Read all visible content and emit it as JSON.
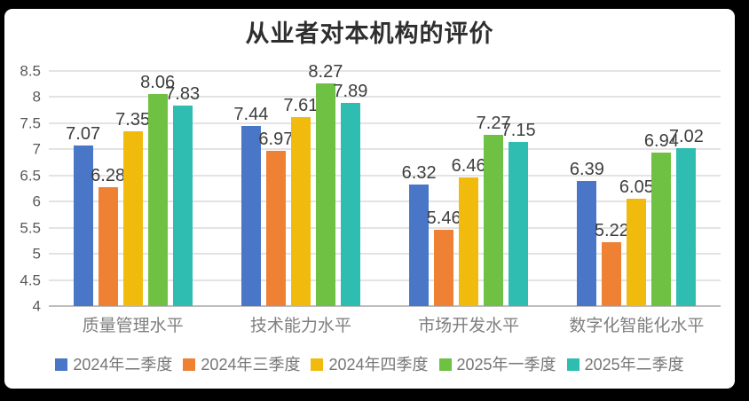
{
  "frame": {
    "background_color": "#000000",
    "card_background_color": "#ffffff"
  },
  "chart_data": {
    "type": "bar",
    "title": "从业者对本机构的评价",
    "categories": [
      "质量管理水平",
      "技术能力水平",
      "市场开发水平",
      "数字化智能化水平"
    ],
    "series": [
      {
        "name": "2024年二季度",
        "color": "#4A76C8",
        "values": [
          7.07,
          7.44,
          6.32,
          6.39
        ]
      },
      {
        "name": "2024年三季度",
        "color": "#EE8133",
        "values": [
          6.28,
          6.97,
          5.46,
          5.22
        ]
      },
      {
        "name": "2024年四季度",
        "color": "#F1BB0E",
        "values": [
          7.35,
          7.61,
          6.46,
          6.05
        ]
      },
      {
        "name": "2025年一季度",
        "color": "#6FC143",
        "values": [
          8.06,
          8.27,
          7.27,
          6.94
        ]
      },
      {
        "name": "2025年二季度",
        "color": "#2FBDB2",
        "values": [
          7.83,
          7.89,
          7.15,
          7.02
        ]
      }
    ],
    "y_axis": {
      "min": 4,
      "max": 8.5,
      "step": 0.5,
      "ticks": [
        "8.5",
        "8",
        "7.5",
        "7",
        "6.5",
        "6",
        "5.5",
        "5",
        "4.5",
        "4"
      ]
    },
    "grid": true,
    "data_labels": true,
    "legend_position": "bottom",
    "colors": {
      "title_text": "#2e2e2e",
      "data_label_text": "#3d3d3d",
      "axis_tick_text": "#595959",
      "category_text": "#7f7f7f",
      "legend_text": "#767676",
      "gridline": "#e3e3e3",
      "axis_baseline": "#bdbdbd"
    }
  }
}
